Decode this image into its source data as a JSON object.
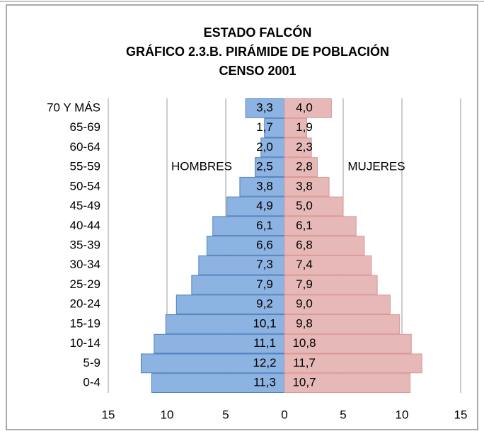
{
  "chart_data": {
    "type": "pyramid",
    "title": [
      "ESTADO FALCÓN",
      "GRÁFICO 2.3.B. PIRÁMIDE DE POBLACIÓN",
      "CENSO 2001"
    ],
    "categories": [
      "70 Y MÁS",
      "65-69",
      "60-64",
      "55-59",
      "50-54",
      "45-49",
      "40-44",
      "35-39",
      "30-34",
      "25-29",
      "20-24",
      "15-19",
      "10-14",
      "5-9",
      "0-4"
    ],
    "series": [
      {
        "name": "HOMBRES",
        "color": "#8db3e2",
        "side": "left",
        "values": [
          3.3,
          1.7,
          2.0,
          2.5,
          3.8,
          4.9,
          6.1,
          6.6,
          7.3,
          7.9,
          9.2,
          10.1,
          11.1,
          12.2,
          11.3
        ],
        "value_labels": [
          "3,3",
          "1,7",
          "2,0",
          "2,5",
          "3,8",
          "4,9",
          "6,1",
          "6,6",
          "7,3",
          "7,9",
          "9,2",
          "10,1",
          "11,1",
          "12,2",
          "11,3"
        ]
      },
      {
        "name": "MUJERES",
        "color": "#e6b9b8",
        "side": "right",
        "values": [
          4.0,
          1.9,
          2.3,
          2.8,
          3.8,
          5.0,
          6.1,
          6.8,
          7.4,
          7.9,
          9.0,
          9.8,
          10.8,
          11.7,
          10.7
        ],
        "value_labels": [
          "4,0",
          "1,9",
          "2,3",
          "2,8",
          "3,8",
          "5,0",
          "6,1",
          "6,8",
          "7,4",
          "7,9",
          "9,0",
          "9,8",
          "10,8",
          "11,7",
          "10,7"
        ]
      }
    ],
    "xlim": [
      -15,
      15
    ],
    "xticks": [
      {
        "value": -15,
        "label": "15"
      },
      {
        "value": -10,
        "label": "10"
      },
      {
        "value": -5,
        "label": "5"
      },
      0,
      5,
      10,
      15
    ],
    "grid": true
  }
}
